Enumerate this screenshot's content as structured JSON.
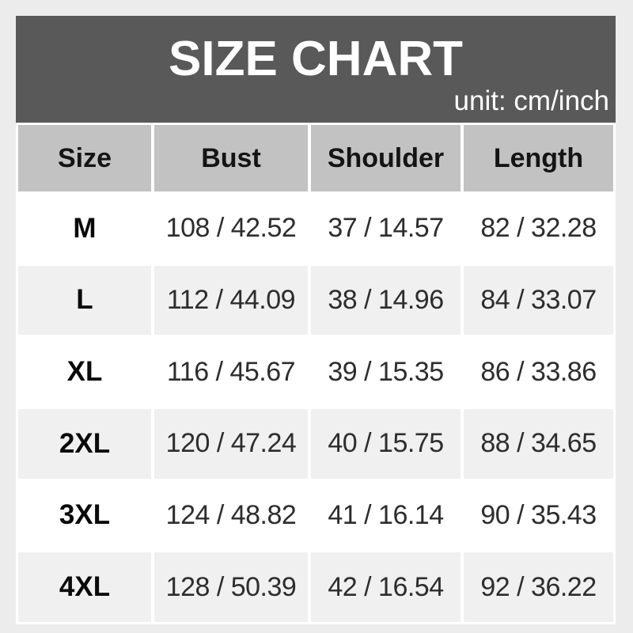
{
  "page": {
    "background_color": "#ececec"
  },
  "header": {
    "title": "SIZE CHART",
    "unit_label": "unit: cm/inch",
    "background_color": "#595959",
    "text_color": "#ffffff"
  },
  "table": {
    "header_bg": "#c2c2c2",
    "row_bg": "#ffffff",
    "alt_row_bg": "#f0f0f0",
    "gutter_color": "#ffffff"
  },
  "chart_data": {
    "type": "table",
    "title": "SIZE CHART",
    "unit": "unit: cm/inch",
    "columns": [
      "Size",
      "Bust",
      "Shoulder",
      "Length"
    ],
    "rows": [
      [
        "M",
        "108 / 42.52",
        "37 / 14.57",
        "82 / 32.28"
      ],
      [
        "L",
        "112 / 44.09",
        "38 / 14.96",
        "84 / 33.07"
      ],
      [
        "XL",
        "116 / 45.67",
        "39 / 15.35",
        "86 / 33.86"
      ],
      [
        "2XL",
        "120 / 47.24",
        "40 / 15.75",
        "88 / 34.65"
      ],
      [
        "3XL",
        "124 / 48.82",
        "41 / 16.14",
        "90 / 35.43"
      ],
      [
        "4XL",
        "128 / 50.39",
        "42 / 16.54",
        "92 / 36.22"
      ]
    ]
  }
}
